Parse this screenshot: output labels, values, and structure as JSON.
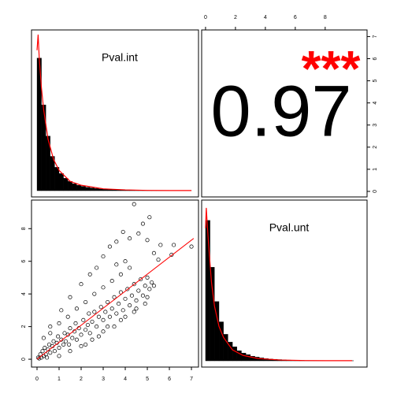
{
  "chart_data": {
    "type": "pairs",
    "variables": [
      {
        "name": "Pval.int",
        "xlim": [
          -0.25,
          7.32
        ],
        "ylim": [
          -0.25,
          7.3
        ],
        "ticks": [
          0,
          1,
          2,
          3,
          4,
          5,
          6,
          7
        ],
        "hist": {
          "bins": [
            0,
            0.2,
            0.4,
            0.6,
            0.8,
            1,
            1.2,
            1.4,
            1.6,
            1.8,
            2,
            2.2,
            2.4,
            2.6,
            2.8,
            3,
            3.2,
            3.4,
            3.6,
            3.8,
            4,
            4.2,
            4.4,
            4.6,
            4.8,
            5,
            5.2,
            5.4,
            5.6,
            5.8,
            6,
            6.2,
            6.4,
            6.6,
            6.8,
            7
          ],
          "counts": [
            0.85,
            0.55,
            0.35,
            0.22,
            0.15,
            0.11,
            0.08,
            0.06,
            0.045,
            0.035,
            0.028,
            0.022,
            0.018,
            0.014,
            0.011,
            0.009,
            0.007,
            0.006,
            0.005,
            0.004,
            0.003,
            0.003,
            0.002,
            0.002,
            0.002,
            0.001,
            0.001,
            0.001,
            0.001,
            0.001,
            0.001,
            0,
            0.001,
            0,
            0.001
          ]
        },
        "density": {
          "x": [
            0,
            0.05,
            0.1,
            0.2,
            0.3,
            0.5,
            0.75,
            1,
            1.5,
            2,
            3,
            4,
            5,
            6,
            7
          ],
          "y": [
            0.9,
            1.0,
            0.85,
            0.66,
            0.52,
            0.33,
            0.2,
            0.13,
            0.06,
            0.035,
            0.012,
            0.005,
            0.002,
            0.001,
            0.001
          ]
        }
      },
      {
        "name": "Pval.unt",
        "xlim": [
          -0.26,
          10.8
        ],
        "ylim": [
          -0.48,
          9.75
        ],
        "ticks": [
          0,
          2,
          4,
          6,
          8
        ],
        "hist": {
          "bins": [
            0,
            0.3,
            0.6,
            0.9,
            1.2,
            1.5,
            1.8,
            2.1,
            2.4,
            2.7,
            3,
            3.3,
            3.6,
            3.9,
            4.2,
            4.5,
            4.8,
            5.1,
            5.4,
            5.7,
            6,
            6.3,
            6.6,
            6.9,
            7.2,
            7.5,
            7.8,
            8.1,
            8.4,
            8.7,
            9,
            9.3,
            9.6,
            9.9
          ],
          "counts": [
            0.9,
            0.6,
            0.38,
            0.25,
            0.17,
            0.12,
            0.09,
            0.065,
            0.05,
            0.04,
            0.03,
            0.024,
            0.019,
            0.015,
            0.012,
            0.01,
            0.008,
            0.006,
            0.005,
            0.004,
            0.003,
            0.003,
            0.002,
            0.002,
            0.002,
            0.001,
            0.001,
            0.001,
            0.001,
            0.001,
            0.001,
            0.001,
            0.001
          ]
        },
        "density": {
          "x": [
            0,
            0.05,
            0.1,
            0.2,
            0.4,
            0.6,
            0.9,
            1.2,
            1.8,
            2.5,
            3.5,
            5,
            6.5,
            8,
            9.8
          ],
          "y": [
            0.85,
            0.98,
            0.9,
            0.75,
            0.5,
            0.35,
            0.22,
            0.15,
            0.07,
            0.035,
            0.015,
            0.005,
            0.002,
            0.001,
            0.001
          ]
        }
      }
    ],
    "hist_ylim": [
      -0.04,
      1.03
    ],
    "hist_color": "#000000",
    "density_color": "#ff0000",
    "correlation": 0.97,
    "significance": "***",
    "significance_color": "#ff0000",
    "scatter": {
      "points": [
        [
          0.05,
          0.1
        ],
        [
          0.1,
          0.05
        ],
        [
          0.15,
          0.3
        ],
        [
          0.2,
          0.1
        ],
        [
          0.25,
          0.5
        ],
        [
          0.3,
          0.2
        ],
        [
          0.35,
          0.7
        ],
        [
          0.4,
          0.3
        ],
        [
          0.45,
          0.1
        ],
        [
          0.5,
          0.6
        ],
        [
          0.55,
          0.9
        ],
        [
          0.6,
          0.4
        ],
        [
          0.7,
          0.8
        ],
        [
          0.75,
          1.1
        ],
        [
          0.8,
          0.5
        ],
        [
          0.9,
          1.0
        ],
        [
          0.95,
          1.4
        ],
        [
          1.0,
          0.7
        ],
        [
          1.1,
          1.2
        ],
        [
          1.2,
          0.9
        ],
        [
          1.25,
          1.6
        ],
        [
          1.3,
          1.1
        ],
        [
          1.4,
          1.5
        ],
        [
          1.45,
          0.9
        ],
        [
          1.5,
          1.9
        ],
        [
          1.6,
          1.3
        ],
        [
          1.7,
          1.7
        ],
        [
          1.75,
          2.2
        ],
        [
          1.8,
          1.2
        ],
        [
          1.9,
          1.9
        ],
        [
          2.0,
          1.5
        ],
        [
          2.1,
          2.4
        ],
        [
          2.2,
          1.8
        ],
        [
          2.3,
          2.1
        ],
        [
          2.35,
          2.8
        ],
        [
          2.4,
          1.6
        ],
        [
          2.5,
          2.3
        ],
        [
          2.6,
          2.9
        ],
        [
          2.7,
          2.0
        ],
        [
          2.8,
          2.6
        ],
        [
          2.9,
          3.2
        ],
        [
          3.0,
          2.4
        ],
        [
          3.1,
          2.9
        ],
        [
          3.2,
          3.5
        ],
        [
          3.3,
          2.6
        ],
        [
          3.4,
          3.1
        ],
        [
          3.5,
          3.8
        ],
        [
          3.6,
          2.8
        ],
        [
          3.7,
          3.4
        ],
        [
          3.8,
          4.1
        ],
        [
          3.9,
          3.0
        ],
        [
          4.0,
          3.7
        ],
        [
          4.1,
          4.3
        ],
        [
          4.2,
          3.3
        ],
        [
          4.3,
          3.9
        ],
        [
          4.4,
          4.6
        ],
        [
          4.5,
          3.6
        ],
        [
          4.6,
          4.2
        ],
        [
          4.7,
          4.9
        ],
        [
          4.8,
          3.9
        ],
        [
          4.9,
          4.5
        ],
        [
          5.0,
          5.0
        ],
        [
          5.1,
          4.3
        ],
        [
          5.2,
          4.7
        ],
        [
          0.6,
          1.6
        ],
        [
          1.0,
          2.2
        ],
        [
          1.4,
          2.6
        ],
        [
          1.8,
          3.1
        ],
        [
          2.2,
          3.5
        ],
        [
          2.6,
          4.0
        ],
        [
          3.0,
          4.4
        ],
        [
          3.4,
          4.8
        ],
        [
          3.8,
          5.2
        ],
        [
          4.2,
          5.6
        ],
        [
          4.0,
          6.0
        ],
        [
          3.6,
          5.8
        ],
        [
          2.2,
          0.9
        ],
        [
          2.8,
          1.4
        ],
        [
          3.2,
          2.0
        ],
        [
          3.8,
          2.4
        ],
        [
          4.4,
          2.9
        ],
        [
          4.9,
          3.4
        ],
        [
          4.4,
          9.5
        ],
        [
          5.1,
          8.7
        ],
        [
          4.8,
          8.3
        ],
        [
          3.9,
          7.8
        ],
        [
          4.2,
          7.4
        ],
        [
          3.6,
          7.2
        ],
        [
          3.3,
          6.9
        ],
        [
          4.6,
          7.7
        ],
        [
          3.0,
          6.3
        ],
        [
          5.0,
          7.3
        ],
        [
          5.6,
          7.0
        ],
        [
          5.3,
          6.5
        ],
        [
          6.2,
          7.0
        ],
        [
          7.0,
          6.9
        ],
        [
          5.5,
          6.1
        ],
        [
          6.1,
          6.4
        ],
        [
          2.4,
          5.2
        ],
        [
          2.7,
          5.6
        ],
        [
          2.0,
          4.6
        ],
        [
          1.5,
          3.8
        ],
        [
          1.1,
          3.0
        ],
        [
          0.6,
          2.0
        ],
        [
          0.3,
          1.3
        ],
        [
          3.5,
          2.0
        ],
        [
          4.0,
          2.6
        ],
        [
          4.5,
          3.1
        ],
        [
          5.0,
          3.8
        ],
        [
          5.3,
          4.5
        ],
        [
          3.0,
          1.7
        ],
        [
          2.5,
          1.2
        ],
        [
          2.0,
          0.8
        ],
        [
          1.5,
          0.5
        ],
        [
          1.0,
          0.2
        ]
      ]
    },
    "fit": {
      "x": [
        0,
        7.1
      ],
      "y": [
        0,
        7.4
      ],
      "color": "#ff0000"
    }
  }
}
